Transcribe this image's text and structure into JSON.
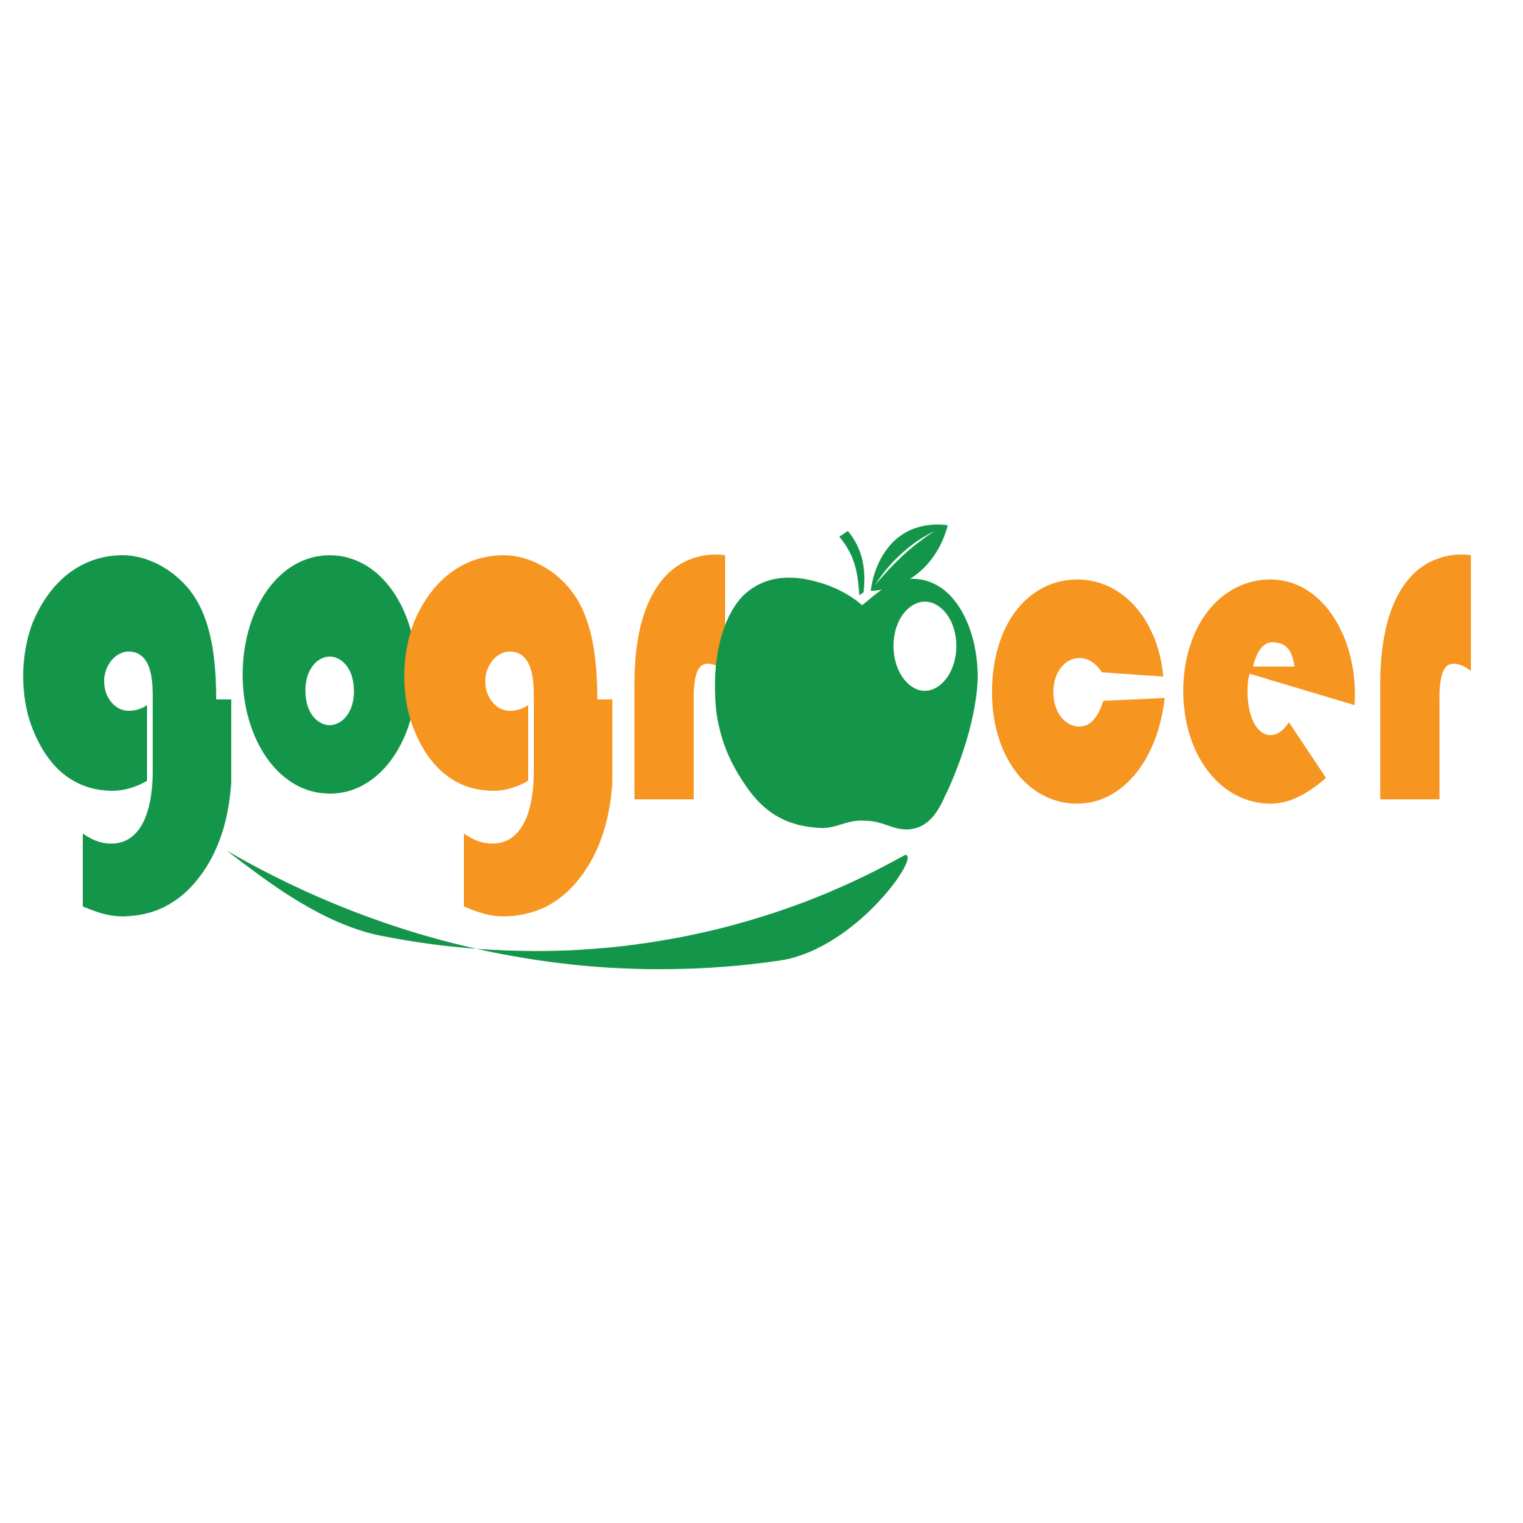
{
  "logo": {
    "wordmark": "gogrocer",
    "colors": {
      "green": "#13964a",
      "orange": "#f6951f",
      "background": "#ffffff"
    },
    "letters": [
      {
        "char": "g",
        "color": "green"
      },
      {
        "char": "o",
        "color": "green"
      },
      {
        "char": "g",
        "color": "orange"
      },
      {
        "char": "r",
        "color": "orange"
      },
      {
        "char": "o",
        "color": "green",
        "rendered_as": "apple-icon"
      },
      {
        "char": "c",
        "color": "orange"
      },
      {
        "char": "e",
        "color": "orange"
      },
      {
        "char": "r",
        "color": "orange"
      }
    ],
    "icons": [
      "apple-icon",
      "leaf-icon",
      "smile-swoosh-icon"
    ]
  }
}
